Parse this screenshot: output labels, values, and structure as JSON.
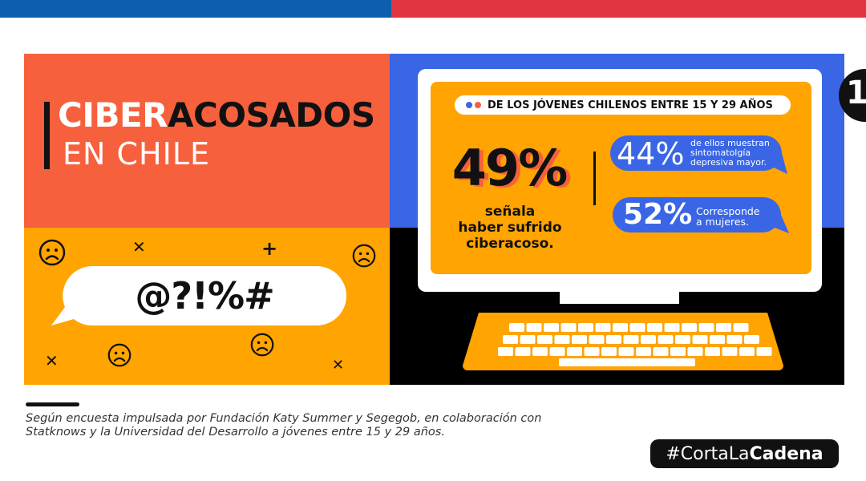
{
  "title": {
    "part1": "CIBER",
    "part2": "ACOSADOS",
    "line2": "EN CHILE"
  },
  "bubble_symbols": "@?!%#",
  "screen": {
    "header": "DE LOS JÓVENES CHILENOS ENTRE 15 Y 29 AÑOS",
    "main_stat": {
      "value": "49%",
      "desc_lines": [
        "señala",
        "haber sufrido",
        "ciberacoso."
      ]
    },
    "stats": [
      {
        "value": "44%",
        "desc_lines": [
          "de ellos muestran",
          "sintomatolgía",
          "depresiva mayor."
        ]
      },
      {
        "value": "52%",
        "desc_lines": [
          "Corresponde",
          "a mujeres."
        ]
      }
    ]
  },
  "footer": {
    "lines": [
      "Según encuesta impulsada por Fundación Katy Summer y Segegob, en colaboración con",
      "Statknows y la Universidad del Desarrollo a jóvenes entre 15 y 29 años."
    ]
  },
  "hashtag": {
    "prefix": "#CortaLa",
    "bold": "Cadena"
  },
  "page_number": "1",
  "icons": [
    "sad-face-icon",
    "cross-icon",
    "speech-bubble-icon",
    "computer-monitor-icon",
    "keyboard-icon"
  ],
  "colors": {
    "blue": "#0d5fae",
    "red": "#e2343f",
    "coral": "#f7603d",
    "orange": "#ffa400",
    "royal_blue": "#3a66e6",
    "black": "#000000"
  }
}
